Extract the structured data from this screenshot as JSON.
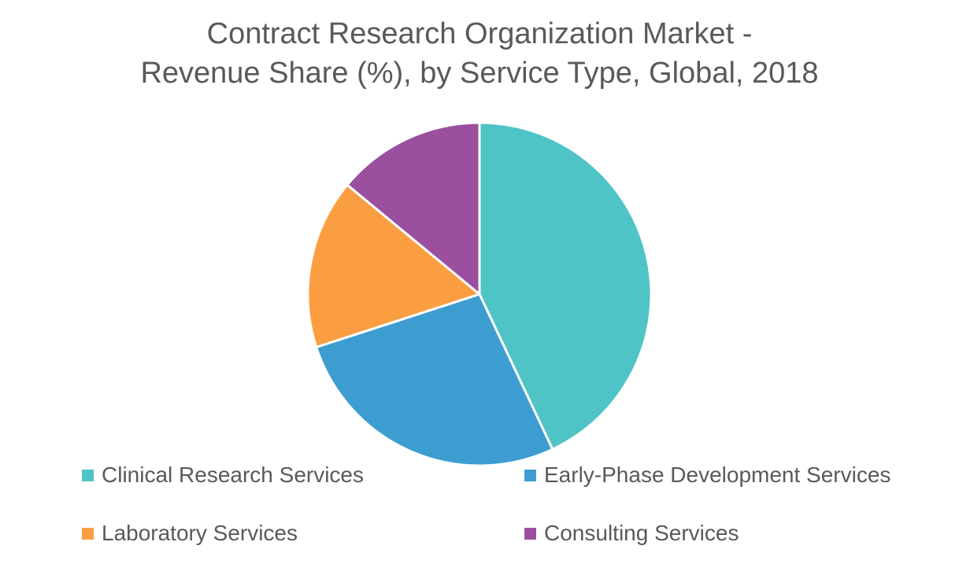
{
  "chart_data": {
    "type": "pie",
    "title_lines": [
      "Contract Research Organization Market -",
      "Revenue Share (%), by Service Type, Global, 2018"
    ],
    "categories": [
      "Clinical Research Services",
      "Early-Phase Development Services",
      "Laboratory Services",
      "Consulting Services"
    ],
    "values": [
      43,
      27,
      16,
      14
    ],
    "colors": [
      "#4fc4c6",
      "#3e9dd0",
      "#fb9e42",
      "#9b4f9f"
    ],
    "legend_position": "bottom",
    "start_angle": "12 o'clock",
    "direction": "clockwise"
  }
}
